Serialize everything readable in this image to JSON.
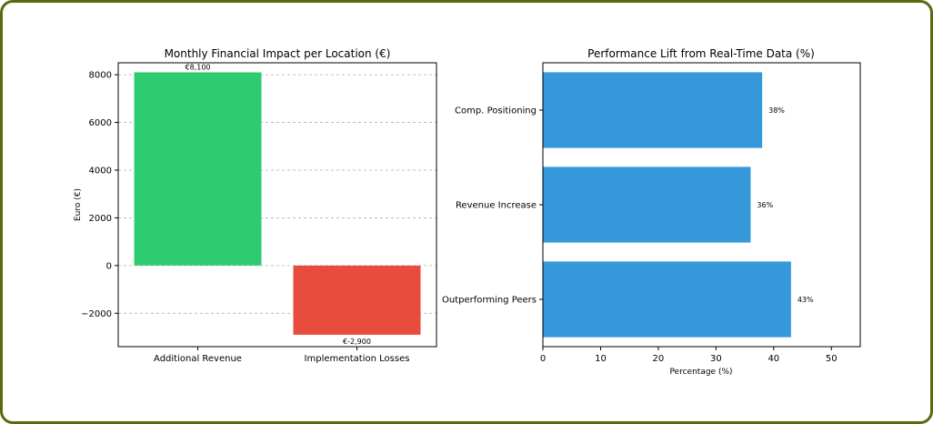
{
  "chart_data": [
    {
      "type": "bar",
      "title": "Monthly Financial Impact per Location (€)",
      "xlabel": "",
      "ylabel": "Euro (€)",
      "categories": [
        "Additional Revenue",
        "Implementation Losses"
      ],
      "values": [
        8100,
        -2900
      ],
      "data_labels": [
        "€8,100",
        "€-2,900"
      ],
      "colors": [
        "#2ecc71",
        "#e74c3c"
      ],
      "ylim": [
        -3400,
        8500
      ],
      "yticks": [
        -2000,
        0,
        2000,
        4000,
        6000,
        8000
      ],
      "grid": "horizontal dashed"
    },
    {
      "type": "bar",
      "orientation": "horizontal",
      "title": "Performance Lift from Real-Time Data (%)",
      "xlabel": "Percentage (%)",
      "ylabel": "",
      "categories": [
        "Outperforming Peers",
        "Revenue Increase",
        "Comp. Positioning"
      ],
      "values": [
        43,
        36,
        38
      ],
      "data_labels": [
        "43%",
        "36%",
        "38%"
      ],
      "color": "#3498db",
      "xlim": [
        0,
        55
      ],
      "xticks": [
        0,
        10,
        20,
        30,
        40,
        50
      ],
      "grid": "none"
    }
  ]
}
